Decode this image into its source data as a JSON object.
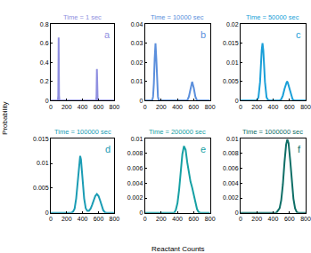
{
  "chart_data": [
    {
      "type": "line",
      "title": "Time = 1 sec",
      "annotation": "a",
      "color": "#8f8fe0",
      "x": [
        0,
        90,
        95,
        100,
        105,
        110,
        570,
        575,
        580,
        585,
        590,
        800
      ],
      "values": [
        0,
        0,
        0.05,
        0.66,
        0.05,
        0,
        0,
        0.04,
        0.33,
        0.04,
        0,
        0
      ],
      "xlim": [
        0,
        800
      ],
      "xticks": [
        0,
        200,
        400,
        600,
        800
      ],
      "ylim": [
        0,
        0.8
      ],
      "yticks": [
        0,
        0.2,
        0.4,
        0.6,
        0.8
      ]
    },
    {
      "type": "line",
      "title": "Time = 10000 sec",
      "annotation": "b",
      "color": "#5b8fdc",
      "x": [
        0,
        90,
        100,
        110,
        120,
        130,
        140,
        150,
        160,
        170,
        520,
        540,
        560,
        580,
        600,
        620,
        640,
        800
      ],
      "values": [
        0,
        0,
        0.002,
        0.009,
        0.022,
        0.03,
        0.022,
        0.009,
        0.002,
        0,
        0,
        0.002,
        0.0066,
        0.0098,
        0.0066,
        0.002,
        0,
        0
      ],
      "xlim": [
        0,
        800
      ],
      "xticks": [
        0,
        200,
        400,
        600,
        800
      ],
      "ylim": [
        0,
        0.04
      ],
      "yticks": [
        0,
        0.01,
        0.02,
        0.03,
        0.04
      ]
    },
    {
      "type": "line",
      "title": "Time = 50000 sec",
      "annotation": "c",
      "color": "#1a9fd8",
      "x": [
        0,
        200,
        220,
        240,
        260,
        270,
        280,
        300,
        320,
        340,
        360,
        480,
        500,
        520,
        540,
        560,
        570,
        580,
        600,
        620,
        640,
        660,
        800
      ],
      "values": [
        0,
        0,
        0.0008,
        0.0049,
        0.0131,
        0.015,
        0.0131,
        0.0049,
        0.0008,
        0.0001,
        0,
        0,
        0.0003,
        0.0013,
        0.003,
        0.0047,
        0.005,
        0.0047,
        0.003,
        0.0013,
        0.0003,
        0,
        0
      ],
      "xlim": [
        0,
        800
      ],
      "xticks": [
        0,
        200,
        400,
        600,
        800
      ],
      "ylim": [
        0,
        0.02
      ],
      "yticks": [
        0,
        0.005,
        0.01,
        0.015,
        0.02
      ]
    },
    {
      "type": "line",
      "title": "Time = 100000 sec",
      "annotation": "d",
      "color": "#1a9cb4",
      "x": [
        0,
        260,
        280,
        300,
        320,
        340,
        360,
        370,
        380,
        400,
        420,
        440,
        460,
        480,
        500,
        520,
        540,
        560,
        580,
        600,
        620,
        640,
        660,
        680,
        700,
        800
      ],
      "values": [
        0,
        0,
        0.0002,
        0.0008,
        0.0029,
        0.0069,
        0.0108,
        0.0115,
        0.0108,
        0.0069,
        0.0029,
        0.0009,
        0.0004,
        0.0004,
        0.0008,
        0.0016,
        0.0026,
        0.0034,
        0.0038,
        0.0034,
        0.0025,
        0.0013,
        0.0005,
        0.0001,
        0,
        0
      ],
      "xlim": [
        0,
        800
      ],
      "xticks": [
        0,
        200,
        400,
        600,
        800
      ],
      "ylim": [
        0,
        0.015
      ],
      "yticks": [
        0,
        0.005,
        0.01,
        0.015
      ]
    },
    {
      "type": "line",
      "title": "Time = 200000 sec",
      "annotation": "e",
      "color": "#16a0a4",
      "x": [
        0,
        360,
        380,
        400,
        420,
        440,
        460,
        480,
        500,
        520,
        540,
        560,
        580,
        600,
        620,
        640,
        660,
        680,
        800
      ],
      "values": [
        0,
        0,
        0.0004,
        0.0013,
        0.0031,
        0.0057,
        0.0079,
        0.009,
        0.0085,
        0.0068,
        0.0052,
        0.0042,
        0.0034,
        0.0024,
        0.0013,
        0.0005,
        0.0001,
        0,
        0
      ],
      "xlim": [
        0,
        800
      ],
      "xticks": [
        0,
        200,
        400,
        600,
        800
      ],
      "ylim": [
        0,
        0.01
      ],
      "yticks": [
        0,
        0.002,
        0.004,
        0.006,
        0.008,
        0.01
      ]
    },
    {
      "type": "line",
      "title": "Time = 1000000 sec",
      "annotation": "f",
      "color": "#0e6e66",
      "x": [
        0,
        440,
        460,
        480,
        500,
        520,
        540,
        560,
        575,
        590,
        610,
        630,
        650,
        670,
        690,
        710,
        800
      ],
      "values": [
        0,
        0,
        0.0003,
        0.0006,
        0.0017,
        0.0038,
        0.0068,
        0.0092,
        0.0099,
        0.0094,
        0.0071,
        0.0042,
        0.0019,
        0.0006,
        0.0001,
        0,
        0
      ],
      "xlim": [
        0,
        800
      ],
      "xticks": [
        0,
        200,
        400,
        600,
        800
      ],
      "ylim": [
        0,
        0.01
      ],
      "yticks": [
        0,
        0.002,
        0.004,
        0.006,
        0.008,
        0.01
      ]
    }
  ],
  "shared": {
    "x_label": "Reactant Counts",
    "y_label": "Probability"
  }
}
